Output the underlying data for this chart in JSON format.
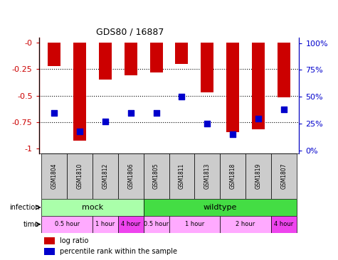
{
  "title": "GDS80 / 16887",
  "samples": [
    "GSM1804",
    "GSM1810",
    "GSM1812",
    "GSM1806",
    "GSM1805",
    "GSM1811",
    "GSM1813",
    "GSM1818",
    "GSM1819",
    "GSM1807"
  ],
  "log_ratios": [
    -0.22,
    -0.93,
    -0.35,
    -0.31,
    -0.28,
    -0.2,
    -0.47,
    -0.85,
    -0.82,
    -0.52
  ],
  "percentile_ranks": [
    35,
    18,
    27,
    35,
    35,
    50,
    25,
    15,
    30,
    38
  ],
  "bar_color": "#cc0000",
  "dot_color": "#0000cc",
  "ylim_left": [
    -1.05,
    0.05
  ],
  "ylim_right": [
    -2.625,
    105
  ],
  "yticks_left": [
    0,
    -0.25,
    -0.5,
    -0.75,
    -1.0
  ],
  "ytick_labels_left": [
    "-0",
    "-0.25",
    "-0.5",
    "-0.75",
    "-1"
  ],
  "yticks_right": [
    0,
    25,
    50,
    75,
    100
  ],
  "infection_groups": [
    {
      "label": "mock",
      "start": 0,
      "end": 4,
      "color": "#aaffaa"
    },
    {
      "label": "wildtype",
      "start": 4,
      "end": 10,
      "color": "#44dd44"
    }
  ],
  "time_groups": [
    {
      "label": "0.5 hour",
      "start": 0,
      "end": 2,
      "color": "#ffaaff"
    },
    {
      "label": "1 hour",
      "start": 2,
      "end": 3,
      "color": "#ffaaff"
    },
    {
      "label": "4 hour",
      "start": 3,
      "end": 4,
      "color": "#ee44ee"
    },
    {
      "label": "0.5 hour",
      "start": 4,
      "end": 5,
      "color": "#ffaaff"
    },
    {
      "label": "1 hour",
      "start": 5,
      "end": 7,
      "color": "#ffaaff"
    },
    {
      "label": "2 hour",
      "start": 7,
      "end": 9,
      "color": "#ffaaff"
    },
    {
      "label": "4 hour",
      "start": 9,
      "end": 10,
      "color": "#ee44ee"
    }
  ],
  "bar_color_red": "#cc0000",
  "dot_color_blue": "#0000cc",
  "annotation_color_left": "#cc0000",
  "annotation_color_right": "#0000cc",
  "background_color": "#ffffff"
}
